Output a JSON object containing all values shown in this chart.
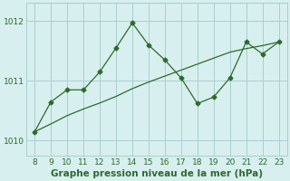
{
  "x": [
    8,
    9,
    10,
    11,
    12,
    13,
    14,
    15,
    16,
    17,
    18,
    19,
    20,
    21,
    22,
    23
  ],
  "y_line": [
    1010.15,
    1010.65,
    1010.85,
    1010.85,
    1011.15,
    1011.55,
    1011.97,
    1011.6,
    1011.35,
    1011.05,
    1010.62,
    1010.73,
    1011.05,
    1011.65,
    1011.45,
    1011.65
  ],
  "y_trend": [
    1010.15,
    1010.28,
    1010.42,
    1010.53,
    1010.63,
    1010.74,
    1010.87,
    1010.98,
    1011.08,
    1011.18,
    1011.28,
    1011.38,
    1011.48,
    1011.54,
    1011.59,
    1011.65
  ],
  "line_color": "#2d6a2d",
  "bg_color": "#d8efef",
  "grid_color": "#aacfcf",
  "xlabel": "Graphe pression niveau de la mer (hPa)",
  "ylim": [
    1009.75,
    1012.3
  ],
  "xlim": [
    7.5,
    23.5
  ],
  "yticks": [
    1010,
    1011,
    1012
  ],
  "xticks": [
    8,
    9,
    10,
    11,
    12,
    13,
    14,
    15,
    16,
    17,
    18,
    19,
    20,
    21,
    22,
    23
  ]
}
